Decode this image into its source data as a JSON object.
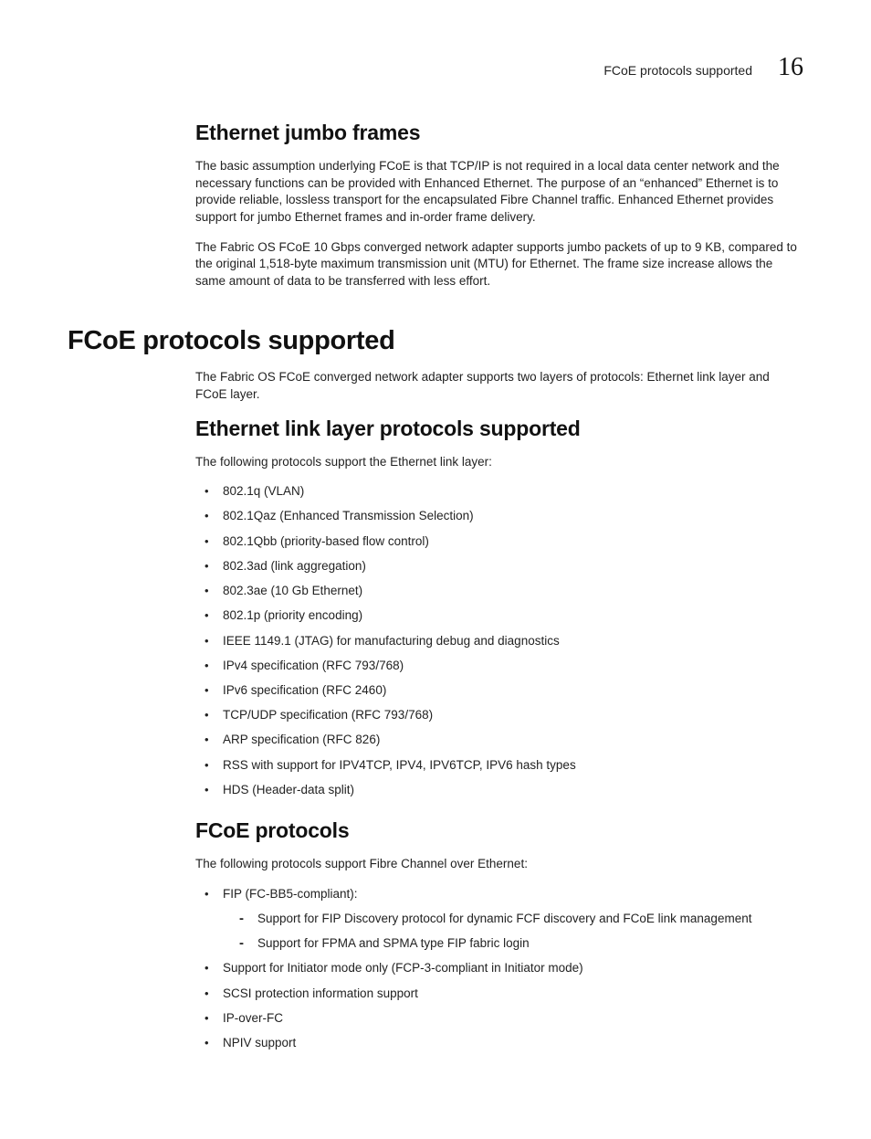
{
  "header": {
    "section_title": "FCoE protocols supported",
    "chapter_number": "16"
  },
  "section_jumbo": {
    "heading": "Ethernet jumbo frames",
    "p1": "The basic assumption underlying FCoE is that TCP/IP is not required in a local data center network and the necessary functions can be provided with Enhanced Ethernet. The purpose of an “enhanced” Ethernet is to provide reliable, lossless transport for the encapsulated Fibre Channel traffic. Enhanced Ethernet provides support for jumbo Ethernet frames and in-order frame delivery.",
    "p2": "The Fabric OS FCoE 10 Gbps converged network adapter supports jumbo packets of up to 9 KB, compared to the original 1,518-byte maximum transmission unit (MTU) for Ethernet. The frame size increase allows the same amount of data to be transferred with less effort."
  },
  "section_main": {
    "heading": "FCoE protocols supported",
    "intro": "The Fabric OS FCoE converged network adapter supports two layers of protocols: Ethernet link layer and FCoE layer."
  },
  "section_linklayer": {
    "heading": "Ethernet link layer protocols supported",
    "intro": "The following protocols support the Ethernet link layer:",
    "items": [
      "802.1q (VLAN)",
      "802.1Qaz (Enhanced Transmission Selection)",
      "802.1Qbb (priority-based flow control)",
      "802.3ad (link aggregation)",
      "802.3ae (10 Gb Ethernet)",
      "802.1p (priority encoding)",
      "IEEE 1149.1 (JTAG) for manufacturing debug and diagnostics",
      "IPv4 specification (RFC 793/768)",
      "IPv6 specification (RFC 2460)",
      "TCP/UDP specification (RFC 793/768)",
      "ARP specification (RFC 826)",
      "RSS with support for IPV4TCP, IPV4, IPV6TCP, IPV6 hash types",
      "HDS (Header-data split)"
    ]
  },
  "section_fcoe": {
    "heading": "FCoE protocols",
    "intro": "The following protocols support Fibre Channel over Ethernet:",
    "items": [
      {
        "text": "FIP (FC-BB5-compliant):",
        "sub": [
          "Support for FIP Discovery protocol for dynamic FCF discovery and FCoE link management",
          "Support for FPMA and SPMA type FIP fabric login"
        ]
      },
      {
        "text": "Support for Initiator mode only (FCP-3-compliant in Initiator mode)"
      },
      {
        "text": "SCSI protection information support"
      },
      {
        "text": "IP-over-FC"
      },
      {
        "text": "NPIV support"
      }
    ]
  }
}
